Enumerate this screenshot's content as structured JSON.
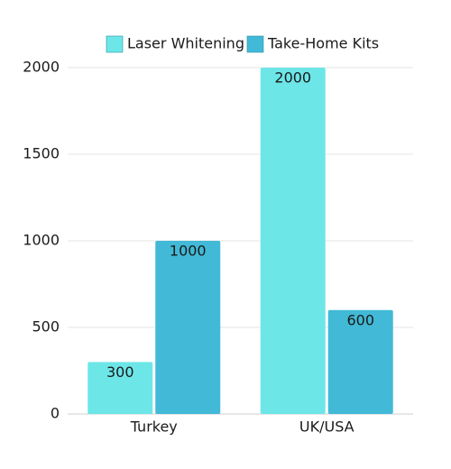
{
  "chart_data": {
    "type": "bar",
    "categories": [
      "Turkey",
      "UK/USA"
    ],
    "series": [
      {
        "name": "Laser Whitening",
        "color": "#6de6e8",
        "values": [
          300,
          2000
        ]
      },
      {
        "name": "Take-Home Kits",
        "color": "#42b9d6",
        "values": [
          1000,
          600
        ]
      }
    ],
    "ylim": [
      0,
      2000
    ],
    "yticks": [
      0,
      500,
      1000,
      1500,
      2000
    ],
    "grid": true,
    "legend": "top"
  }
}
